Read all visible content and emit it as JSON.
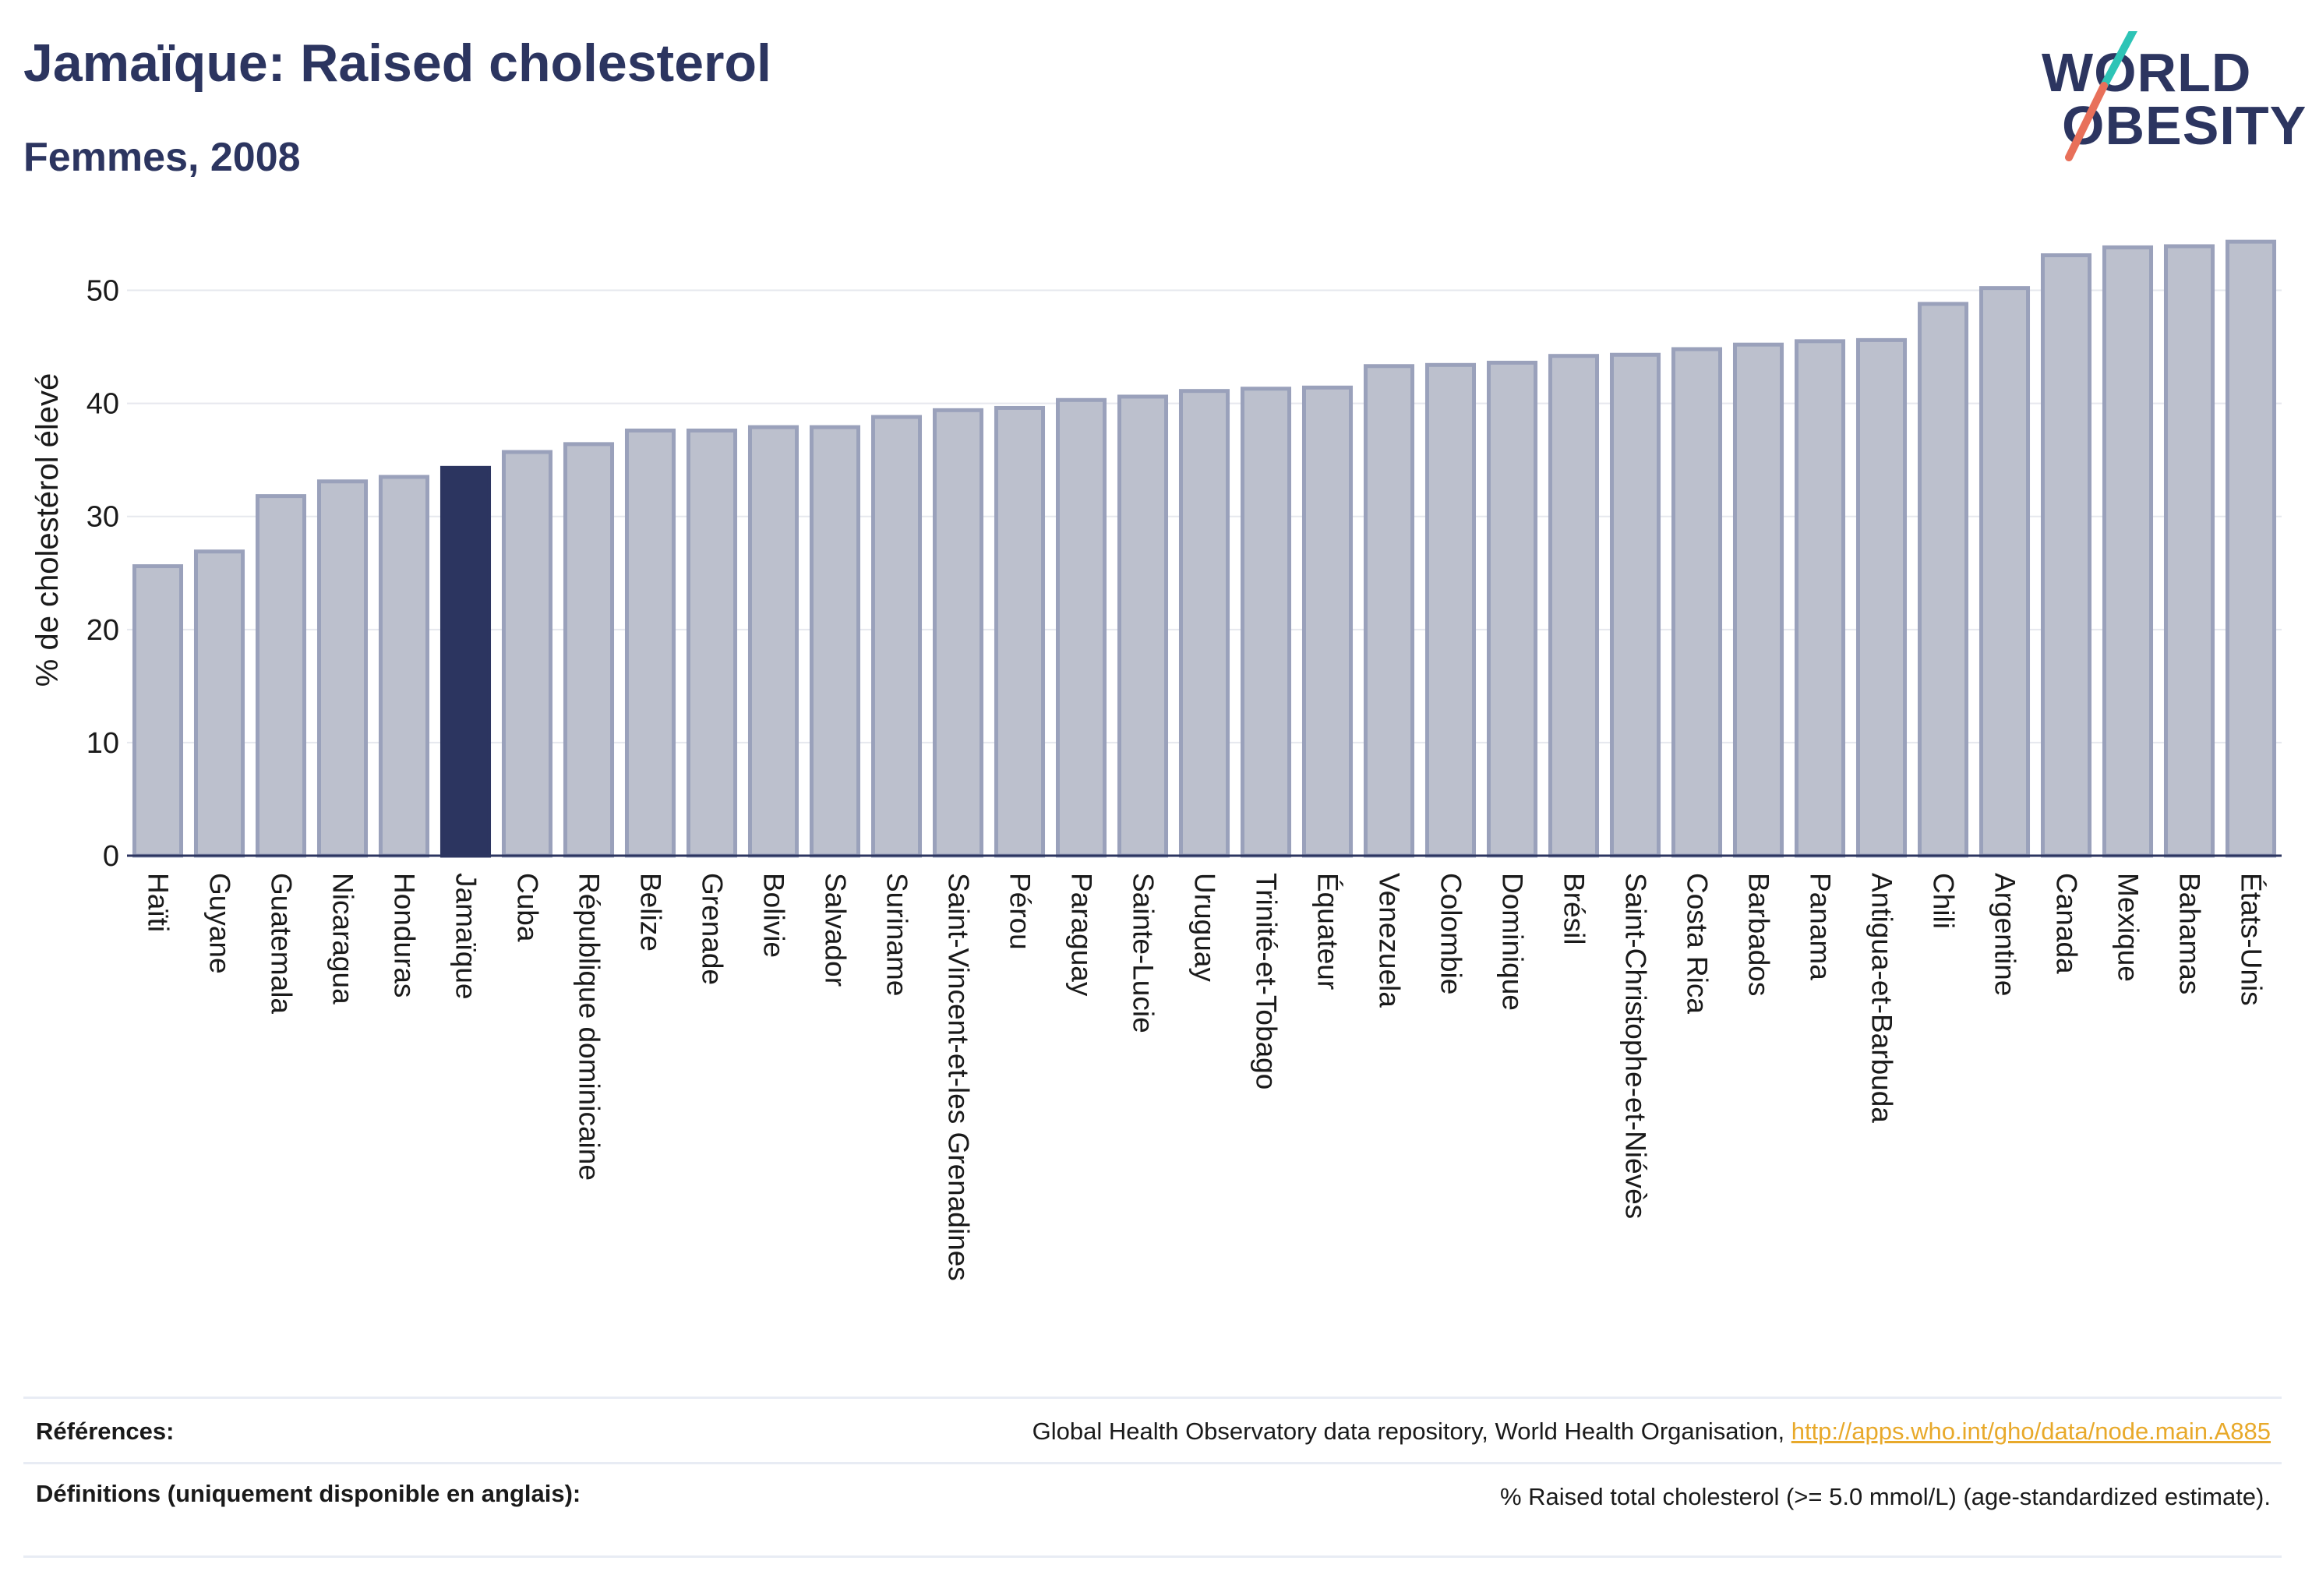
{
  "header": {
    "title": "Jamaïque: Raised cholesterol",
    "subtitle": "Femmes, 2008"
  },
  "logo": {
    "line1": "WORLD",
    "line2": "OBESITY"
  },
  "colors": {
    "bar_default": "#bcc0cd",
    "bar_default_border": "#9aa1bb",
    "bar_highlight": "#2c3560",
    "text_primary": "#2c3560",
    "link": "#e8a92a",
    "logo_slash_teal": "#2ec4b6",
    "logo_slash_red": "#e8705a"
  },
  "chart_data": {
    "type": "bar",
    "ylabel": "% de cholestérol élevé",
    "xlabel": "",
    "ylim": [
      0,
      55
    ],
    "yticks": [
      0,
      10,
      20,
      30,
      40,
      50
    ],
    "grid": true,
    "highlight": "Jamaïque",
    "categories": [
      "Haïti",
      "Guyane",
      "Guatemala",
      "Nicaragua",
      "Honduras",
      "Jamaïque",
      "Cuba",
      "République dominicaine",
      "Belize",
      "Grenade",
      "Bolivie",
      "Salvador",
      "Suriname",
      "Saint-Vincent-et-les Grenadines",
      "Pérou",
      "Paraguay",
      "Sainte-Lucie",
      "Uruguay",
      "Trinité-et-Tobago",
      "Équateur",
      "Venezuela",
      "Colombie",
      "Dominique",
      "Brésil",
      "Saint-Christophe-et-Niévès",
      "Costa Rica",
      "Barbados",
      "Panama",
      "Antigua-et-Barbuda",
      "Chili",
      "Argentine",
      "Canada",
      "Mexique",
      "Bahamas",
      "États-Unis"
    ],
    "values": [
      25.6,
      26.9,
      31.8,
      33.1,
      33.5,
      34.3,
      35.7,
      36.4,
      37.6,
      37.6,
      37.9,
      37.9,
      38.8,
      39.4,
      39.6,
      40.3,
      40.6,
      41.1,
      41.3,
      41.4,
      43.3,
      43.4,
      43.6,
      44.2,
      44.3,
      44.8,
      45.2,
      45.5,
      45.6,
      48.8,
      50.2,
      53.1,
      53.8,
      53.9,
      54.3
    ]
  },
  "references": {
    "sources_label": "Références:",
    "sources_text": "Global Health Observatory data repository, World Health Organisation, ",
    "sources_link": "http://apps.who.int/gho/data/node.main.A885",
    "definitions_label": "Définitions (uniquement disponible en anglais):",
    "definitions_text": "% Raised total cholesterol (>= 5.0 mmol/L) (age-standardized estimate)."
  }
}
